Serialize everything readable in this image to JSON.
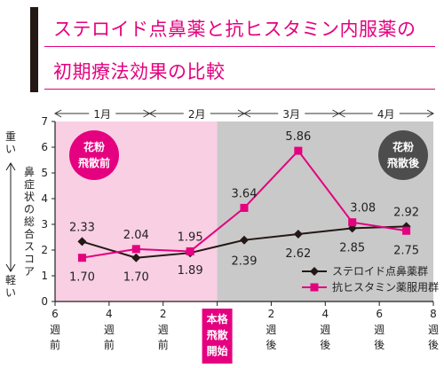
{
  "title_lines": [
    "ステロイド点鼻薬と抗ヒスタミン内服薬の",
    "初期療法効果の比較"
  ],
  "chart_data": {
    "type": "line",
    "x": [
      -5,
      -3,
      -1,
      1,
      3,
      5,
      7
    ],
    "series": [
      {
        "name": "ステロイド点鼻薬群",
        "values": [
          2.33,
          1.7,
          1.89,
          2.39,
          2.62,
          2.85,
          2.92
        ],
        "color": "#231815",
        "marker": "diamond"
      },
      {
        "name": "抗ヒスタミン薬服用群",
        "values": [
          1.7,
          2.04,
          1.95,
          3.64,
          5.86,
          3.08,
          2.75
        ],
        "color": "#e4007f",
        "marker": "square"
      }
    ],
    "xlim": [
      -6,
      8
    ],
    "ylim": [
      0,
      7
    ],
    "yticks": [
      0,
      1,
      2,
      3,
      4,
      5,
      6,
      7
    ],
    "xticks": [
      {
        "value": -6,
        "num": "6",
        "unit": [
          "週",
          "前"
        ]
      },
      {
        "value": -4,
        "num": "4",
        "unit": [
          "週",
          "前"
        ]
      },
      {
        "value": -2,
        "num": "2",
        "unit": [
          "週",
          "前"
        ]
      },
      {
        "value": 2,
        "num": "2",
        "unit": [
          "週",
          "後"
        ]
      },
      {
        "value": 4,
        "num": "4",
        "unit": [
          "週",
          "後"
        ]
      },
      {
        "value": 6,
        "num": "6",
        "unit": [
          "週",
          "後"
        ]
      },
      {
        "value": 8,
        "num": "8",
        "unit": [
          "週",
          "後"
        ]
      }
    ],
    "start_label": [
      "本格",
      "飛散",
      "開始"
    ],
    "months": [
      {
        "label": "1月",
        "from": -6,
        "to": -2.5
      },
      {
        "label": "2月",
        "from": -2.5,
        "to": 1
      },
      {
        "label": "3月",
        "from": 1,
        "to": 4.5
      },
      {
        "label": "4月",
        "from": 4.5,
        "to": 8
      }
    ],
    "regions": [
      {
        "label": [
          "花粉",
          "飛散前"
        ],
        "from": -6,
        "to": 0,
        "color": "#f9cfe3",
        "badge_color": "#e4007f"
      },
      {
        "label": [
          "花粉",
          "飛散後"
        ],
        "from": 0,
        "to": 8,
        "color": "#c9c9c9",
        "badge_color": "#4d4d4d"
      }
    ],
    "ylabel": "鼻症状の総合スコア",
    "y_severity": {
      "high": "重い",
      "low": "軽い"
    },
    "legend_position": "bottom-right",
    "grid": false
  }
}
